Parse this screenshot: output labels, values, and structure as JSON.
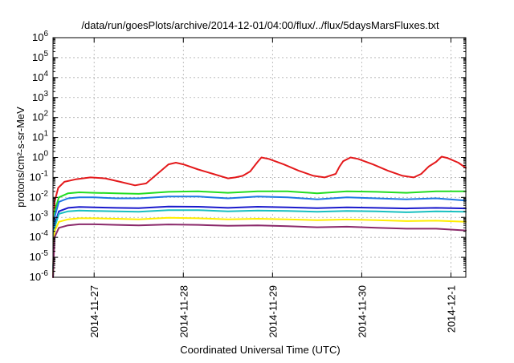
{
  "chart_data": {
    "type": "line",
    "title": "/data/run/goesPlots/archive/2014-12-01/04:00/flux/../flux/5daysMarsFluxes.txt",
    "xlabel": "Coordinated Universal Time (UTC)",
    "ylabel": "protons/cm²-s-sr-MeV",
    "y_scale": "log",
    "ylim": [
      1e-06,
      1000000.0
    ],
    "xlim": [
      "2014-11-26T12:56",
      "2014-12-01T04:00"
    ],
    "grid": true,
    "y_ticks": [
      {
        "value": 1000000.0,
        "base": "10",
        "exp": "6"
      },
      {
        "value": 100000.0,
        "base": "10",
        "exp": "5"
      },
      {
        "value": 10000.0,
        "base": "10",
        "exp": "4"
      },
      {
        "value": 1000.0,
        "base": "10",
        "exp": "3"
      },
      {
        "value": 100.0,
        "base": "10",
        "exp": "2"
      },
      {
        "value": 10.0,
        "base": "10",
        "exp": "1"
      },
      {
        "value": 1.0,
        "base": "10",
        "exp": "0"
      },
      {
        "value": 0.1,
        "base": "10",
        "exp": "-1"
      },
      {
        "value": 0.01,
        "base": "10",
        "exp": "-2"
      },
      {
        "value": 0.001,
        "base": "10",
        "exp": "-3"
      },
      {
        "value": 0.0001,
        "base": "10",
        "exp": "-4"
      },
      {
        "value": 1e-05,
        "base": "10",
        "exp": "-5"
      },
      {
        "value": 1e-06,
        "base": "10",
        "exp": "-6"
      }
    ],
    "x_ticks": [
      {
        "value": "2014-11-27T00:00",
        "label": "2014-11-27"
      },
      {
        "value": "2014-11-28T00:00",
        "label": "2014-11-28"
      },
      {
        "value": "2014-11-29T00:00",
        "label": "2014-11-29"
      },
      {
        "value": "2014-11-30T00:00",
        "label": "2014-11-30"
      },
      {
        "value": "2014-12-01T00:00",
        "label": "2014-12-1"
      }
    ],
    "series": [
      {
        "color": "#e41a1c",
        "points": [
          [
            "2014-11-26T12:56",
            1e-06
          ],
          [
            "2014-11-26T13:20",
            0.006
          ],
          [
            "2014-11-26T14:20",
            0.03
          ],
          [
            "2014-11-26T16:00",
            0.06
          ],
          [
            "2014-11-26T19:00",
            0.08
          ],
          [
            "2014-11-26T23:00",
            0.1
          ],
          [
            "2014-11-27T03:00",
            0.09
          ],
          [
            "2014-11-27T07:00",
            0.06
          ],
          [
            "2014-11-27T11:00",
            0.04
          ],
          [
            "2014-11-27T14:00",
            0.05
          ],
          [
            "2014-11-27T17:00",
            0.15
          ],
          [
            "2014-11-27T20:00",
            0.45
          ],
          [
            "2014-11-27T22:00",
            0.55
          ],
          [
            "2014-11-28T00:00",
            0.45
          ],
          [
            "2014-11-28T04:00",
            0.25
          ],
          [
            "2014-11-28T08:00",
            0.15
          ],
          [
            "2014-11-28T12:00",
            0.09
          ],
          [
            "2014-11-28T14:00",
            0.1
          ],
          [
            "2014-11-28T16:00",
            0.12
          ],
          [
            "2014-11-28T18:00",
            0.2
          ],
          [
            "2014-11-28T19:00",
            0.35
          ],
          [
            "2014-11-28T20:00",
            0.6
          ],
          [
            "2014-11-28T21:00",
            1.0
          ],
          [
            "2014-11-28T23:00",
            0.85
          ],
          [
            "2014-11-29T03:00",
            0.45
          ],
          [
            "2014-11-29T07:00",
            0.22
          ],
          [
            "2014-11-29T11:00",
            0.12
          ],
          [
            "2014-11-29T14:00",
            0.1
          ],
          [
            "2014-11-29T17:00",
            0.15
          ],
          [
            "2014-11-29T18:00",
            0.35
          ],
          [
            "2014-11-29T19:00",
            0.65
          ],
          [
            "2014-11-29T21:00",
            1.0
          ],
          [
            "2014-11-29T23:00",
            0.85
          ],
          [
            "2014-11-30T03:00",
            0.45
          ],
          [
            "2014-11-30T07:00",
            0.22
          ],
          [
            "2014-11-30T11:00",
            0.12
          ],
          [
            "2014-11-30T14:00",
            0.1
          ],
          [
            "2014-11-30T16:00",
            0.15
          ],
          [
            "2014-11-30T18:00",
            0.35
          ],
          [
            "2014-11-30T20:00",
            0.6
          ],
          [
            "2014-11-30T21:30",
            1.1
          ],
          [
            "2014-11-30T23:00",
            0.95
          ],
          [
            "2014-12-01T02:00",
            0.55
          ],
          [
            "2014-12-01T04:00",
            0.3
          ]
        ]
      },
      {
        "color": "#22dd22",
        "points": [
          [
            "2014-11-26T12:56",
            1e-06
          ],
          [
            "2014-11-26T13:20",
            0.002
          ],
          [
            "2014-11-26T14:30",
            0.01
          ],
          [
            "2014-11-26T17:00",
            0.016
          ],
          [
            "2014-11-26T20:00",
            0.018
          ],
          [
            "2014-11-27T00:00",
            0.017
          ],
          [
            "2014-11-27T06:00",
            0.016
          ],
          [
            "2014-11-27T12:00",
            0.015
          ],
          [
            "2014-11-27T20:00",
            0.019
          ],
          [
            "2014-11-28T04:00",
            0.02
          ],
          [
            "2014-11-28T12:00",
            0.017
          ],
          [
            "2014-11-28T20:00",
            0.02
          ],
          [
            "2014-11-29T04:00",
            0.02
          ],
          [
            "2014-11-29T12:00",
            0.016
          ],
          [
            "2014-11-29T20:00",
            0.02
          ],
          [
            "2014-11-30T04:00",
            0.019
          ],
          [
            "2014-11-30T12:00",
            0.017
          ],
          [
            "2014-11-30T20:00",
            0.02
          ],
          [
            "2014-12-01T04:00",
            0.02
          ]
        ]
      },
      {
        "color": "#1f78e4",
        "points": [
          [
            "2014-11-26T12:56",
            1e-06
          ],
          [
            "2014-11-26T13:20",
            0.001
          ],
          [
            "2014-11-26T14:30",
            0.006
          ],
          [
            "2014-11-26T17:00",
            0.009
          ],
          [
            "2014-11-26T20:00",
            0.01
          ],
          [
            "2014-11-27T00:00",
            0.01
          ],
          [
            "2014-11-27T06:00",
            0.009
          ],
          [
            "2014-11-27T12:00",
            0.009
          ],
          [
            "2014-11-27T20:00",
            0.011
          ],
          [
            "2014-11-28T04:00",
            0.011
          ],
          [
            "2014-11-28T12:00",
            0.009
          ],
          [
            "2014-11-28T20:00",
            0.011
          ],
          [
            "2014-11-29T04:00",
            0.01
          ],
          [
            "2014-11-29T12:00",
            0.008
          ],
          [
            "2014-11-29T20:00",
            0.01
          ],
          [
            "2014-11-30T04:00",
            0.009
          ],
          [
            "2014-11-30T12:00",
            0.008
          ],
          [
            "2014-11-30T20:00",
            0.009
          ],
          [
            "2014-12-01T04:00",
            0.007
          ]
        ]
      },
      {
        "color": "#1a1acc",
        "points": [
          [
            "2014-11-26T12:56",
            1e-06
          ],
          [
            "2014-11-26T13:20",
            0.0004
          ],
          [
            "2014-11-26T14:30",
            0.002
          ],
          [
            "2014-11-26T17:00",
            0.003
          ],
          [
            "2014-11-26T20:00",
            0.0033
          ],
          [
            "2014-11-27T00:00",
            0.0032
          ],
          [
            "2014-11-27T06:00",
            0.003
          ],
          [
            "2014-11-27T12:00",
            0.0029
          ],
          [
            "2014-11-27T20:00",
            0.0035
          ],
          [
            "2014-11-28T04:00",
            0.0034
          ],
          [
            "2014-11-28T12:00",
            0.003
          ],
          [
            "2014-11-28T20:00",
            0.0034
          ],
          [
            "2014-11-29T04:00",
            0.0032
          ],
          [
            "2014-11-29T12:00",
            0.0029
          ],
          [
            "2014-11-29T20:00",
            0.0032
          ],
          [
            "2014-11-30T04:00",
            0.003
          ],
          [
            "2014-11-30T12:00",
            0.0028
          ],
          [
            "2014-11-30T20:00",
            0.003
          ],
          [
            "2014-12-01T04:00",
            0.0028
          ]
        ]
      },
      {
        "color": "#19c0c0",
        "points": [
          [
            "2014-11-26T12:56",
            1e-06
          ],
          [
            "2014-11-26T13:20",
            0.0003
          ],
          [
            "2014-11-26T14:30",
            0.0015
          ],
          [
            "2014-11-26T17:00",
            0.002
          ],
          [
            "2014-11-26T20:00",
            0.0022
          ],
          [
            "2014-11-27T00:00",
            0.0021
          ],
          [
            "2014-11-27T06:00",
            0.002
          ],
          [
            "2014-11-27T12:00",
            0.0019
          ],
          [
            "2014-11-27T20:00",
            0.0023
          ],
          [
            "2014-11-28T04:00",
            0.0023
          ],
          [
            "2014-11-28T12:00",
            0.002
          ],
          [
            "2014-11-28T20:00",
            0.0022
          ],
          [
            "2014-11-29T04:00",
            0.0021
          ],
          [
            "2014-11-29T12:00",
            0.0019
          ],
          [
            "2014-11-29T20:00",
            0.0021
          ],
          [
            "2014-11-30T04:00",
            0.002
          ],
          [
            "2014-11-30T12:00",
            0.0018
          ],
          [
            "2014-11-30T20:00",
            0.002
          ],
          [
            "2014-12-01T04:00",
            0.0019
          ]
        ]
      },
      {
        "color": "#ffee00",
        "points": [
          [
            "2014-11-26T12:56",
            1e-06
          ],
          [
            "2014-11-26T13:20",
            0.0002
          ],
          [
            "2014-11-26T14:30",
            0.0006
          ],
          [
            "2014-11-26T17:00",
            0.0008
          ],
          [
            "2014-11-26T20:00",
            0.0009
          ],
          [
            "2014-11-27T00:00",
            0.0009
          ],
          [
            "2014-11-27T06:00",
            0.00085
          ],
          [
            "2014-11-27T12:00",
            0.0008
          ],
          [
            "2014-11-27T20:00",
            0.00095
          ],
          [
            "2014-11-28T04:00",
            0.0009
          ],
          [
            "2014-11-28T12:00",
            0.0008
          ],
          [
            "2014-11-28T20:00",
            0.00085
          ],
          [
            "2014-11-29T04:00",
            0.0008
          ],
          [
            "2014-11-29T12:00",
            0.00072
          ],
          [
            "2014-11-29T20:00",
            0.00078
          ],
          [
            "2014-11-30T04:00",
            0.00072
          ],
          [
            "2014-11-30T12:00",
            0.00065
          ],
          [
            "2014-11-30T20:00",
            0.00068
          ],
          [
            "2014-12-01T04:00",
            0.0006
          ]
        ]
      },
      {
        "color": "#8b2a6b",
        "points": [
          [
            "2014-11-26T12:56",
            1e-06
          ],
          [
            "2014-11-26T13:20",
            0.0001
          ],
          [
            "2014-11-26T14:30",
            0.0003
          ],
          [
            "2014-11-26T17:00",
            0.0004
          ],
          [
            "2014-11-26T20:00",
            0.00045
          ],
          [
            "2014-11-27T00:00",
            0.00045
          ],
          [
            "2014-11-27T06:00",
            0.00042
          ],
          [
            "2014-11-27T12:00",
            0.0004
          ],
          [
            "2014-11-27T20:00",
            0.00044
          ],
          [
            "2014-11-28T04:00",
            0.00042
          ],
          [
            "2014-11-28T12:00",
            0.00038
          ],
          [
            "2014-11-28T20:00",
            0.0004
          ],
          [
            "2014-11-29T04:00",
            0.00036
          ],
          [
            "2014-11-29T12:00",
            0.00032
          ],
          [
            "2014-11-29T20:00",
            0.00034
          ],
          [
            "2014-11-30T04:00",
            0.0003
          ],
          [
            "2014-11-30T12:00",
            0.00027
          ],
          [
            "2014-11-30T20:00",
            0.00027
          ],
          [
            "2014-12-01T04:00",
            0.00022
          ]
        ]
      }
    ]
  }
}
